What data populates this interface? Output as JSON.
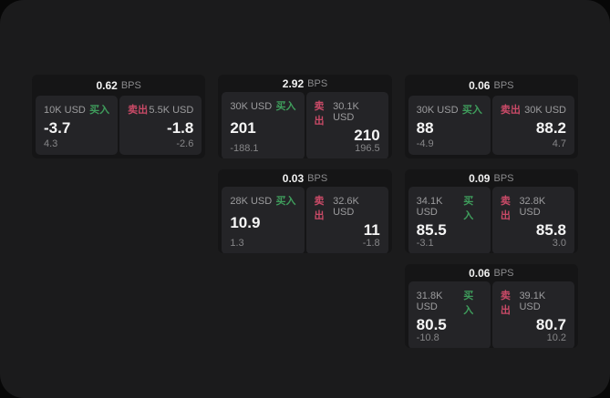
{
  "labels": {
    "buy": "买入",
    "sell": "卖出",
    "bps_unit": "BPS"
  },
  "colors": {
    "buy_accent": "#3f9d5c",
    "sell_accent": "#c94a67",
    "window_bg": "#1b1b1c",
    "card_bg": "#151516",
    "panel_bg": "#242427"
  },
  "cards": [
    {
      "row": 1,
      "col": 1,
      "bps": "0.62",
      "buy": {
        "amount": "10K USD",
        "main": "-3.7",
        "sub": "4.3"
      },
      "sell": {
        "amount": "5.5K USD",
        "main": "-1.8",
        "sub": "-2.6"
      }
    },
    {
      "row": 1,
      "col": 2,
      "bps": "2.92",
      "buy": {
        "amount": "30K USD",
        "main": "201",
        "sub": "-188.1"
      },
      "sell": {
        "amount": "30.1K USD",
        "main": "210",
        "sub": "196.5"
      }
    },
    {
      "row": 1,
      "col": 3,
      "bps": "0.06",
      "buy": {
        "amount": "30K USD",
        "main": "88",
        "sub": "-4.9"
      },
      "sell": {
        "amount": "30K USD",
        "main": "88.2",
        "sub": "4.7"
      }
    },
    {
      "row": 2,
      "col": 2,
      "bps": "0.03",
      "buy": {
        "amount": "28K USD",
        "main": "10.9",
        "sub": "1.3"
      },
      "sell": {
        "amount": "32.6K USD",
        "main": "11",
        "sub": "-1.8"
      }
    },
    {
      "row": 2,
      "col": 3,
      "bps": "0.09",
      "buy": {
        "amount": "34.1K USD",
        "main": "85.5",
        "sub": "-3.1"
      },
      "sell": {
        "amount": "32.8K USD",
        "main": "85.8",
        "sub": "3.0"
      }
    },
    {
      "row": 3,
      "col": 3,
      "bps": "0.06",
      "buy": {
        "amount": "31.8K USD",
        "main": "80.5",
        "sub": "-10.8"
      },
      "sell": {
        "amount": "39.1K USD",
        "main": "80.7",
        "sub": "10.2"
      }
    }
  ]
}
